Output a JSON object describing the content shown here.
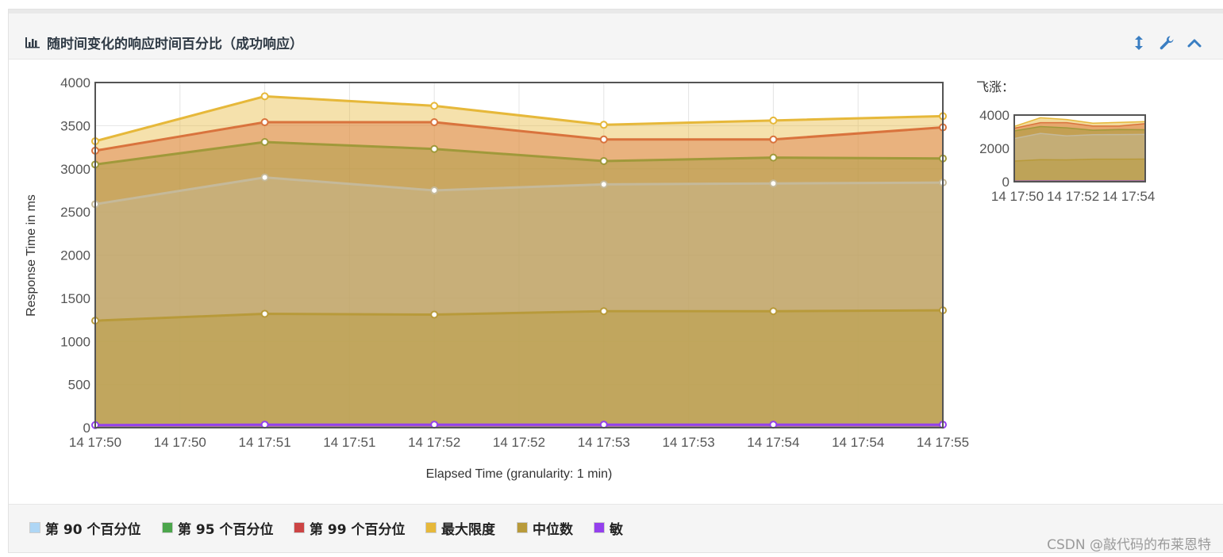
{
  "header": {
    "title": "随时间变化的响应时间百分比（成功响应）",
    "buttons": [
      {
        "icon": "resize-vertical-icon"
      },
      {
        "icon": "wrench-icon"
      },
      {
        "icon": "chevron-up-icon"
      }
    ]
  },
  "overview": {
    "label": "飞涨："
  },
  "legend": [
    {
      "label": "第 90 个百分位",
      "color": "#aed6f5"
    },
    {
      "label": "第 95 个百分位",
      "color": "#4ca64c"
    },
    {
      "label": "第 99 个百分位",
      "color": "#cc4444"
    },
    {
      "label": "最大限度",
      "color": "#e6b83a"
    },
    {
      "label": "中位数",
      "color": "#b89a3a"
    },
    {
      "label": "敏",
      "color": "#9440ed"
    }
  ],
  "watermark": "CSDN @敲代码的布莱恩特",
  "chart_data": {
    "type": "area",
    "title": "",
    "xlabel": "Elapsed Time (granularity: 1 min)",
    "ylabel": "Response Time in ms",
    "ylim": [
      0,
      4000
    ],
    "yticks": [
      "0",
      "500",
      "1000",
      "1500",
      "2000",
      "2500",
      "3000",
      "3500",
      "4000"
    ],
    "xticks": [
      "14 17:50",
      "14 17:50",
      "14 17:51",
      "14 17:51",
      "14 17:52",
      "14 17:52",
      "14 17:53",
      "14 17:53",
      "14 17:54",
      "14 17:54",
      "14 17:55"
    ],
    "x": [
      "17:50",
      "17:51",
      "17:52",
      "17:53",
      "17:54",
      "17:55"
    ],
    "grid": true,
    "series": [
      {
        "name": "最大限度",
        "color": "#e6b83a",
        "values": [
          3320,
          3840,
          3730,
          3510,
          3560,
          3610
        ]
      },
      {
        "name": "第 99 个百分位",
        "color": "#d9733d",
        "values": [
          3210,
          3540,
          3540,
          3340,
          3340,
          3480
        ]
      },
      {
        "name": "第 95 个百分位",
        "color": "#a0993a",
        "values": [
          3050,
          3310,
          3230,
          3090,
          3130,
          3120
        ]
      },
      {
        "name": "第 90 个百分位",
        "color": "#c5b99a",
        "values": [
          2590,
          2900,
          2750,
          2820,
          2830,
          2840
        ]
      },
      {
        "name": "中位数",
        "color": "#b89a3a",
        "values": [
          1240,
          1320,
          1310,
          1350,
          1350,
          1360
        ]
      },
      {
        "name": "敏",
        "color": "#9440ed",
        "values": [
          30,
          35,
          35,
          35,
          35,
          35
        ]
      }
    ],
    "overview": {
      "ylim": [
        0,
        4000
      ],
      "yticks": [
        "0",
        "2000",
        "4000"
      ],
      "xticks": [
        "14 17:50",
        "14 17:52",
        "14 17:54"
      ]
    }
  }
}
